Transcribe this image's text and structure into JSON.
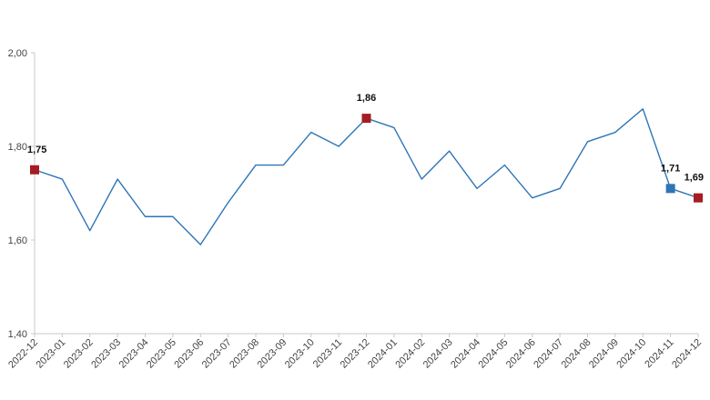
{
  "chart_data": {
    "type": "line",
    "title": "",
    "xlabel": "",
    "ylabel": "",
    "x": [
      "2022-12",
      "2023-01",
      "2023-02",
      "2023-03",
      "2023-04",
      "2023-05",
      "2023-06",
      "2023-07",
      "2023-08",
      "2023-09",
      "2023-10",
      "2023-11",
      "2023-12",
      "2024-01",
      "2024-02",
      "2024-03",
      "2024-04",
      "2024-05",
      "2024-06",
      "2024-07",
      "2024-08",
      "2024-09",
      "2024-10",
      "2024-11",
      "2024-12"
    ],
    "series": [
      {
        "values": [
          1.75,
          1.73,
          1.62,
          1.73,
          1.65,
          1.65,
          1.59,
          1.68,
          1.76,
          1.76,
          1.83,
          1.8,
          1.86,
          1.84,
          1.73,
          1.79,
          1.71,
          1.76,
          1.69,
          1.71,
          1.81,
          1.83,
          1.88,
          1.71,
          1.69
        ],
        "color": "#2e75b6"
      }
    ],
    "ylim": [
      1.4,
      2.0
    ],
    "yticks": [
      1.4,
      1.6,
      1.8,
      2.0
    ],
    "ytick_labels": [
      "1,40",
      "1,60",
      "1,80",
      "2,00"
    ],
    "grid": false,
    "legend": "none",
    "highlighted_points": [
      {
        "index": 0,
        "label": "1,75",
        "color": "#a51c24"
      },
      {
        "index": 12,
        "label": "1,86",
        "color": "#a51c24"
      },
      {
        "index": 23,
        "label": "1,71",
        "color": "#2e75b6"
      },
      {
        "index": 24,
        "label": "1,69",
        "color": "#a51c24"
      }
    ],
    "colors": {
      "line": "#2e75b6",
      "axis": "#c8c8c8"
    }
  }
}
